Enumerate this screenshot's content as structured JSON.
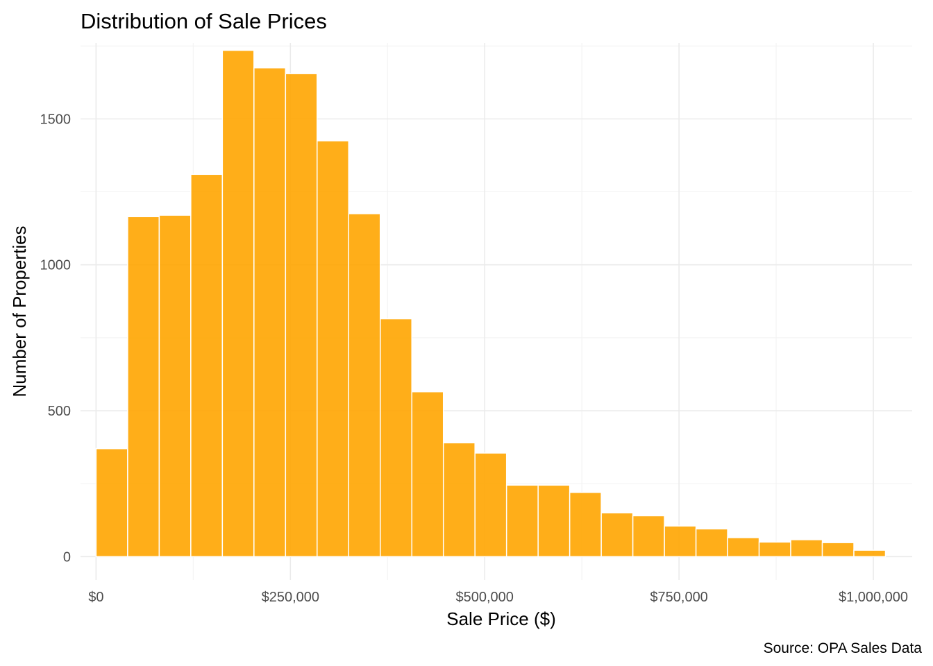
{
  "chart_data": {
    "type": "bar",
    "title": "Distribution of Sale Prices",
    "xlabel": "Sale Price ($)",
    "ylabel": "Number of Properties",
    "caption": "Source: OPA Sales Data",
    "bar_color": "#FFA500",
    "bin_width": 40625,
    "bin_start": 0,
    "values": [
      370,
      1165,
      1170,
      1310,
      1735,
      1675,
      1655,
      1425,
      1175,
      815,
      565,
      390,
      355,
      245,
      245,
      220,
      150,
      140,
      105,
      95,
      65,
      50,
      58,
      48,
      22
    ],
    "xlim": [
      -20000,
      1050000
    ],
    "ylim": [
      -80,
      1760
    ],
    "x_ticks": [
      {
        "value": 0,
        "label": "$0"
      },
      {
        "value": 250000,
        "label": "$250,000"
      },
      {
        "value": 500000,
        "label": "$500,000"
      },
      {
        "value": 750000,
        "label": "$750,000"
      },
      {
        "value": 1000000,
        "label": "$1,000,000"
      }
    ],
    "y_ticks": [
      {
        "value": 0,
        "label": "0"
      },
      {
        "value": 500,
        "label": "500"
      },
      {
        "value": 1000,
        "label": "1000"
      },
      {
        "value": 1500,
        "label": "1500"
      }
    ],
    "grid": true,
    "legend": "none"
  }
}
